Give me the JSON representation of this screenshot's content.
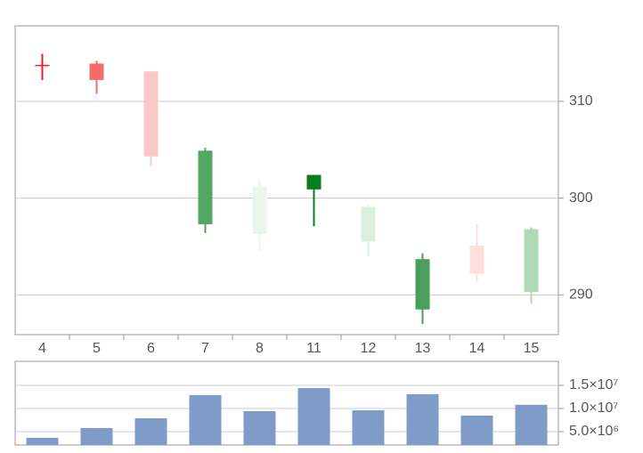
{
  "chart_data": [
    {
      "type": "candlestick",
      "categories": [
        "4",
        "5",
        "6",
        "7",
        "8",
        "11",
        "12",
        "13",
        "14",
        "15"
      ],
      "open": [
        313.7,
        313.9,
        313.1,
        297.3,
        296.3,
        300.9,
        295.5,
        293.7,
        292.2,
        290.3
      ],
      "high": [
        314.9,
        314.2,
        313.1,
        305.2,
        301.8,
        302.4,
        299.3,
        294.3,
        297.3,
        297.0
      ],
      "low": [
        312.2,
        310.8,
        303.3,
        296.4,
        294.6,
        297.1,
        294.0,
        287.0,
        291.4,
        289.1
      ],
      "close": [
        313.7,
        312.2,
        304.3,
        304.9,
        301.2,
        302.4,
        299.1,
        288.5,
        295.1,
        296.8
      ],
      "colors": [
        "#e8202a",
        "#f26c6c",
        "#ffc8c8",
        "#52a862",
        "#eaf5ec",
        "#0a7d20",
        "#dcefdf",
        "#4a9f5a",
        "#ffdede",
        "#b0d9b5"
      ],
      "ylim": [
        285.9,
        317.8
      ],
      "yticks": [
        290,
        300,
        310
      ],
      "grid": true
    },
    {
      "type": "bar",
      "values": [
        3650000,
        5770000,
        7880000,
        12900000,
        9420000,
        14400000,
        9600000,
        13100000,
        8460000,
        10800000
      ],
      "color": "#7f9bc7",
      "ylim": [
        2100000,
        20200000
      ],
      "yticks": [
        {
          "value": 5000000,
          "label": "5.0×10⁶"
        },
        {
          "value": 10000000,
          "label": "1.0×10⁷"
        },
        {
          "value": 15000000,
          "label": "1.5×10⁷"
        }
      ],
      "grid": true
    }
  ]
}
